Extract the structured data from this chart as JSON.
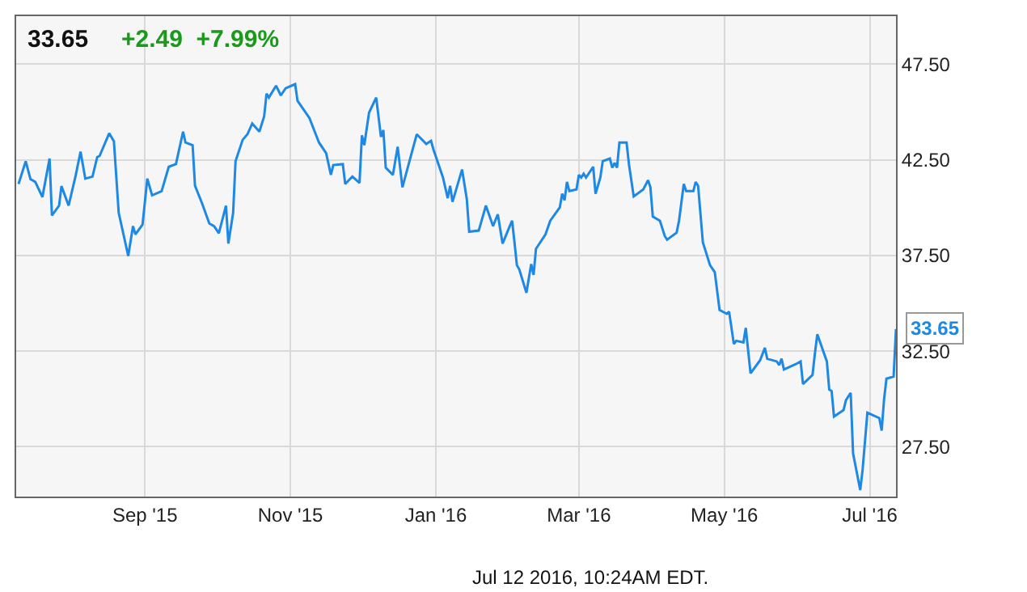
{
  "chart_data": {
    "type": "line",
    "title": "33.65",
    "subtitle": "+2.49  +7.99%",
    "x": [
      "2015-07-10",
      "2015-07-13",
      "2015-07-15",
      "2015-07-17",
      "2015-07-20",
      "2015-07-23",
      "2015-07-24",
      "2015-07-27",
      "2015-07-28",
      "2015-07-31",
      "2015-08-03",
      "2015-08-05",
      "2015-08-07",
      "2015-08-10",
      "2015-08-12",
      "2015-08-13",
      "2015-08-17",
      "2015-08-19",
      "2015-08-21",
      "2015-08-25",
      "2015-08-27",
      "2015-08-28",
      "2015-08-31",
      "2015-09-02",
      "2015-09-04",
      "2015-09-08",
      "2015-09-11",
      "2015-09-14",
      "2015-09-17",
      "2015-09-18",
      "2015-09-21",
      "2015-09-22",
      "2015-09-25",
      "2015-09-28",
      "2015-09-30",
      "2015-10-02",
      "2015-10-05",
      "2015-10-06",
      "2015-10-08",
      "2015-10-09",
      "2015-10-12",
      "2015-10-14",
      "2015-10-16",
      "2015-10-19",
      "2015-10-21",
      "2015-10-22",
      "2015-10-23",
      "2015-10-26",
      "2015-10-28",
      "2015-10-30",
      "2015-11-03",
      "2015-11-04",
      "2015-11-09",
      "2015-11-13",
      "2015-11-16",
      "2015-11-18",
      "2015-11-19",
      "2015-11-23",
      "2015-11-24",
      "2015-11-27",
      "2015-11-30",
      "2015-12-01",
      "2015-12-02",
      "2015-12-04",
      "2015-12-07",
      "2015-12-09",
      "2015-12-10",
      "2015-12-11",
      "2015-12-14",
      "2015-12-16",
      "2015-12-18",
      "2015-12-24",
      "2015-12-28",
      "2015-12-30",
      "2015-12-31",
      "2016-01-04",
      "2016-01-06",
      "2016-01-07",
      "2016-01-08",
      "2016-01-12",
      "2016-01-14",
      "2016-01-15",
      "2016-01-19",
      "2016-01-22",
      "2016-01-25",
      "2016-01-27",
      "2016-01-29",
      "2016-02-01",
      "2016-02-02",
      "2016-02-03",
      "2016-02-04",
      "2016-02-05",
      "2016-02-08",
      "2016-02-10",
      "2016-02-11",
      "2016-02-12",
      "2016-02-16",
      "2016-02-18",
      "2016-02-22",
      "2016-02-23",
      "2016-02-24",
      "2016-02-25",
      "2016-02-26",
      "2016-02-29",
      "2016-03-01",
      "2016-03-02",
      "2016-03-03",
      "2016-03-04",
      "2016-03-07",
      "2016-03-08",
      "2016-03-10",
      "2016-03-11",
      "2016-03-14",
      "2016-03-15",
      "2016-03-16",
      "2016-03-17",
      "2016-03-18",
      "2016-03-21",
      "2016-03-22",
      "2016-03-24",
      "2016-03-28",
      "2016-03-30",
      "2016-03-31",
      "2016-04-01",
      "2016-04-04",
      "2016-04-06",
      "2016-04-07",
      "2016-04-11",
      "2016-04-12",
      "2016-04-14",
      "2016-04-15",
      "2016-04-18",
      "2016-04-19",
      "2016-04-20",
      "2016-04-22",
      "2016-04-25",
      "2016-04-27",
      "2016-04-29",
      "2016-05-02",
      "2016-05-03",
      "2016-05-05",
      "2016-05-06",
      "2016-05-09",
      "2016-05-10",
      "2016-05-12",
      "2016-05-16",
      "2016-05-18",
      "2016-05-19",
      "2016-05-23",
      "2016-05-24",
      "2016-05-25",
      "2016-05-26",
      "2016-05-31",
      "2016-06-02",
      "2016-06-03",
      "2016-06-07",
      "2016-06-08",
      "2016-06-09",
      "2016-06-13",
      "2016-06-14",
      "2016-06-15",
      "2016-06-16",
      "2016-06-20",
      "2016-06-21",
      "2016-06-22",
      "2016-06-23",
      "2016-06-24",
      "2016-06-27",
      "2016-06-28",
      "2016-06-30",
      "2016-07-05",
      "2016-07-06",
      "2016-07-07",
      "2016-07-08",
      "2016-07-11",
      "2016-07-12"
    ],
    "series": [
      {
        "color": "#1e88e5",
        "values": [
          41.23,
          42.42,
          41.48,
          41.34,
          40.55,
          42.56,
          39.59,
          40.1,
          41.12,
          40.1,
          41.7,
          42.92,
          41.51,
          41.62,
          42.64,
          42.7,
          43.88,
          43.46,
          39.73,
          37.47,
          39.03,
          38.6,
          39.11,
          41.51,
          40.64,
          40.86,
          42.13,
          42.27,
          43.97,
          43.4,
          43.26,
          41.14,
          40.21,
          39.17,
          39.03,
          38.66,
          40.1,
          38.12,
          39.73,
          42.42,
          43.54,
          43.83,
          44.39,
          43.97,
          44.76,
          45.95,
          45.75,
          46.37,
          45.86,
          46.23,
          46.45,
          45.58,
          44.68,
          43.4,
          42.84,
          41.71,
          42.22,
          42.27,
          41.23,
          41.62,
          41.29,
          43.77,
          43.26,
          44.96,
          45.75,
          43.69,
          44.05,
          42.08,
          41.71,
          43.18,
          41.06,
          43.83,
          43.32,
          43.49,
          43.04,
          41.57,
          40.49,
          41.14,
          40.3,
          41.99,
          40.44,
          38.74,
          38.8,
          40.1,
          39.03,
          39.65,
          38.12,
          39.03,
          39.31,
          38.18,
          36.99,
          36.77,
          35.55,
          37.05,
          36.48,
          37.84,
          38.6,
          39.31,
          40.01,
          40.72,
          40.38,
          41.34,
          40.86,
          40.95,
          41.71,
          41.57,
          41.77,
          41.57,
          42.13,
          40.72,
          41.57,
          42.42,
          42.56,
          42.08,
          42.33,
          42.08,
          43.4,
          43.4,
          42.27,
          40.58,
          40.95,
          41.43,
          41.06,
          39.53,
          39.31,
          38.52,
          38.32,
          38.69,
          39.31,
          41.23,
          40.86,
          40.86,
          41.34,
          41.14,
          38.18,
          36.99,
          36.62,
          34.65,
          34.45,
          34.56,
          32.87,
          33.04,
          32.95,
          33.71,
          31.34,
          32.02,
          32.67,
          32.1,
          31.96,
          31.77,
          32.1,
          31.54,
          31.82,
          31.96,
          30.78,
          31.26,
          32.39,
          33.38,
          31.96,
          30.49,
          30.41,
          29.08,
          29.42,
          29.93,
          30.13,
          30.32,
          27.16,
          25.24,
          26.31,
          29.28,
          29.0,
          28.35,
          29.99,
          31.06,
          31.17,
          33.65
        ]
      }
    ],
    "annotations": [
      "Jul 12 2016, 10:24AM EDT.",
      {
        "text": "33.65",
        "x": "2016-07-12",
        "y": 33.65
      }
    ],
    "xlim": [
      "2015-07-09",
      "2016-07-12"
    ],
    "xticks": [
      {
        "value": "2015-09-01",
        "label": "Sep '15"
      },
      {
        "value": "2015-11-01",
        "label": "Nov '15"
      },
      {
        "value": "2016-01-01",
        "label": "Jan '16"
      },
      {
        "value": "2016-03-01",
        "label": "Mar '16"
      },
      {
        "value": "2016-05-01",
        "label": "May '16"
      },
      {
        "value": "2016-07-01",
        "label": "Jul '16"
      }
    ],
    "ylim": [
      24.9,
      50.0
    ],
    "yticks": [
      {
        "value": 27.5,
        "label": "27.50"
      },
      {
        "value": 32.5,
        "label": "32.50"
      },
      {
        "value": 37.5,
        "label": "37.50"
      },
      {
        "value": 42.5,
        "label": "42.50"
      },
      {
        "value": 47.5,
        "label": "47.50"
      }
    ],
    "grid": true,
    "legend": false,
    "marker": "none",
    "line_style": "solid"
  }
}
